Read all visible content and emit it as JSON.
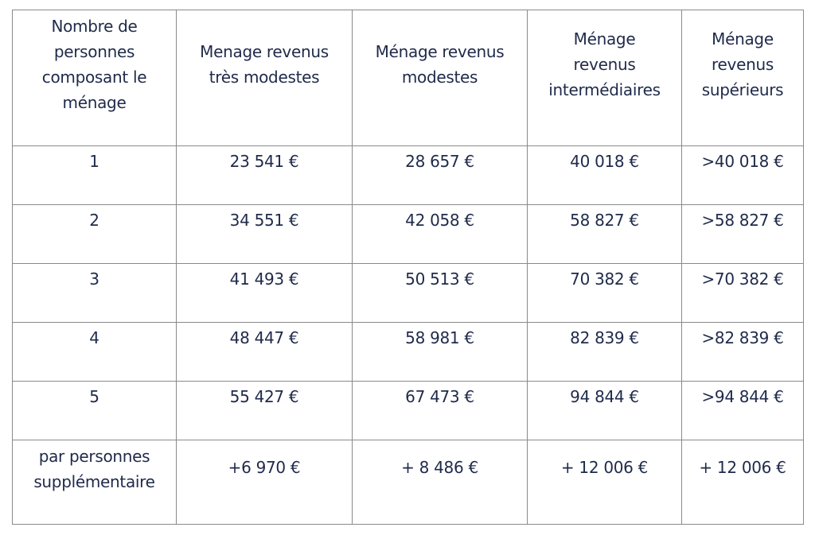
{
  "table": {
    "headers": [
      "Nombre de\npersonnes\ncomposant le\nménage",
      "Menage revenus\ntrès modestes",
      "Ménage revenus\nmodestes",
      "Ménage\nrevenus\nintermédiaires",
      "Ménage\nrevenus\nsupérieurs"
    ],
    "rows": [
      [
        "1",
        "23 541 €",
        "28 657 €",
        "40 018 €",
        ">40 018 €"
      ],
      [
        "2",
        "34 551 €",
        "42 058 €",
        "58 827 €",
        ">58 827 €"
      ],
      [
        "3",
        "41 493 €",
        "50 513 €",
        "70 382 €",
        ">70 382 €"
      ],
      [
        "4",
        "48 447 €",
        "58 981 €",
        "82 839 €",
        ">82 839 €"
      ],
      [
        "5",
        "55 427 €",
        "67 473 €",
        "94 844 €",
        ">94 844 €"
      ],
      [
        "par personnes\nsupplémentaire",
        "+6 970 €",
        "+ 8 486 €",
        "+ 12 006 €",
        "+ 12 006 €"
      ]
    ]
  },
  "colors": {
    "text": "#1f2a4a",
    "border": "#8a8a8a",
    "background": "#ffffff"
  }
}
